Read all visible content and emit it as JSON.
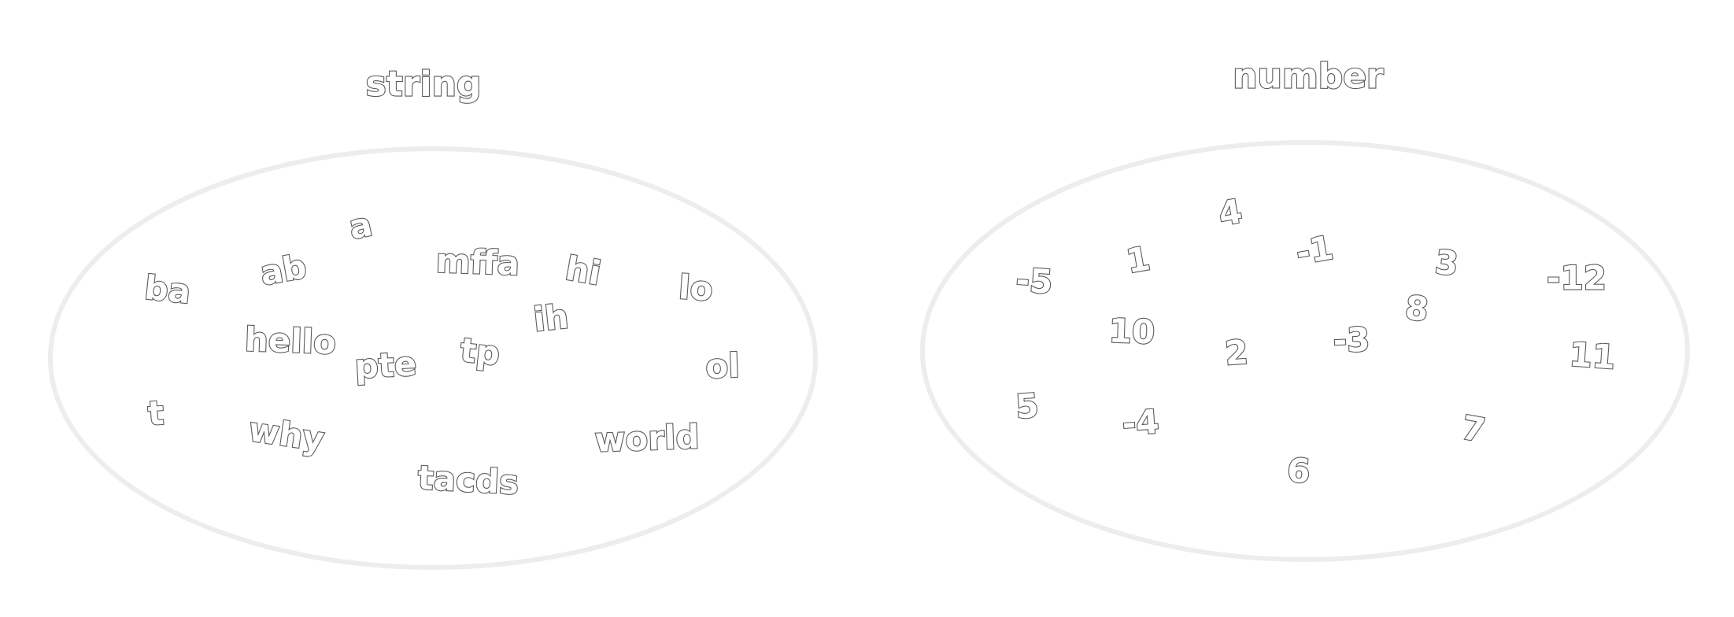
{
  "sets": [
    {
      "title": "string",
      "members": [
        "ba",
        "ab",
        "a",
        "mffa",
        "hi",
        "lo",
        "hello",
        "pte",
        "tp",
        "ih",
        "ol",
        "t",
        "why",
        "tacds",
        "world"
      ]
    },
    {
      "title": "number",
      "members": [
        "-5",
        "1",
        "4",
        "-1",
        "3",
        "-12",
        "10",
        "2",
        "-3",
        "8",
        "11",
        "5",
        "-4",
        "6",
        "7"
      ]
    }
  ]
}
